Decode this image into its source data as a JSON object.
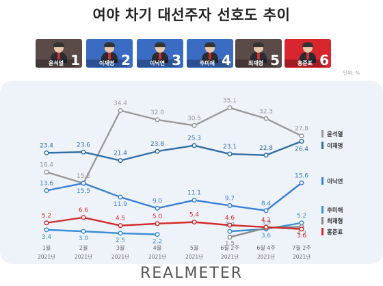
{
  "title": "여야 차기 대선주자 선호도 추이",
  "unit_label": "단위: %",
  "brand": "REALMETER",
  "candidates": [
    {
      "name": "윤석열",
      "rank": "1",
      "color": "#5a4a48"
    },
    {
      "name": "이재명",
      "rank": "2",
      "color": "#3b6cc4"
    },
    {
      "name": "이낙연",
      "rank": "3",
      "color": "#3b6cc4"
    },
    {
      "name": "추미애",
      "rank": "4",
      "color": "#3b6cc4"
    },
    {
      "name": "최재형",
      "rank": "5",
      "color": "#5a4a48"
    },
    {
      "name": "홍준표",
      "rank": "6",
      "color": "#d8262e"
    }
  ],
  "chart_data": {
    "type": "line",
    "title": "여야 차기 대선주자 선호도 추이",
    "x_labels": [
      "1월",
      "2월",
      "3월",
      "4월",
      "5월",
      "6월 2주",
      "6월 4주",
      "7월 2주"
    ],
    "x_sublabel": "2021년",
    "ylim": [
      0,
      40
    ],
    "grid": false,
    "legend": "right",
    "series": [
      {
        "name": "윤석열",
        "color": "#999999",
        "values": [
          18.4,
          15.5,
          34.4,
          32.0,
          30.5,
          35.1,
          32.3,
          27.8
        ]
      },
      {
        "name": "이재명",
        "color": "#2f6da3",
        "values": [
          23.4,
          23.6,
          21.4,
          23.8,
          25.3,
          23.1,
          22.8,
          26.4
        ]
      },
      {
        "name": "이낙연",
        "color": "#3a7fd6",
        "values": [
          13.6,
          15.5,
          11.9,
          9.0,
          11.1,
          9.7,
          8.4,
          15.6
        ]
      },
      {
        "name": "추미애",
        "color": "#3a8ed2",
        "values": [
          3.4,
          3.0,
          2.5,
          2.2,
          null,
          3.0,
          3.6,
          5.2
        ]
      },
      {
        "name": "최재형",
        "color": "#8a8a8a",
        "values": [
          null,
          null,
          null,
          null,
          null,
          1.5,
          3.9,
          4.2
        ]
      },
      {
        "name": "홍준표",
        "color": "#d12b2b",
        "values": [
          5.2,
          6.6,
          4.5,
          5.0,
          5.4,
          4.6,
          4.1,
          3.6
        ]
      }
    ]
  }
}
